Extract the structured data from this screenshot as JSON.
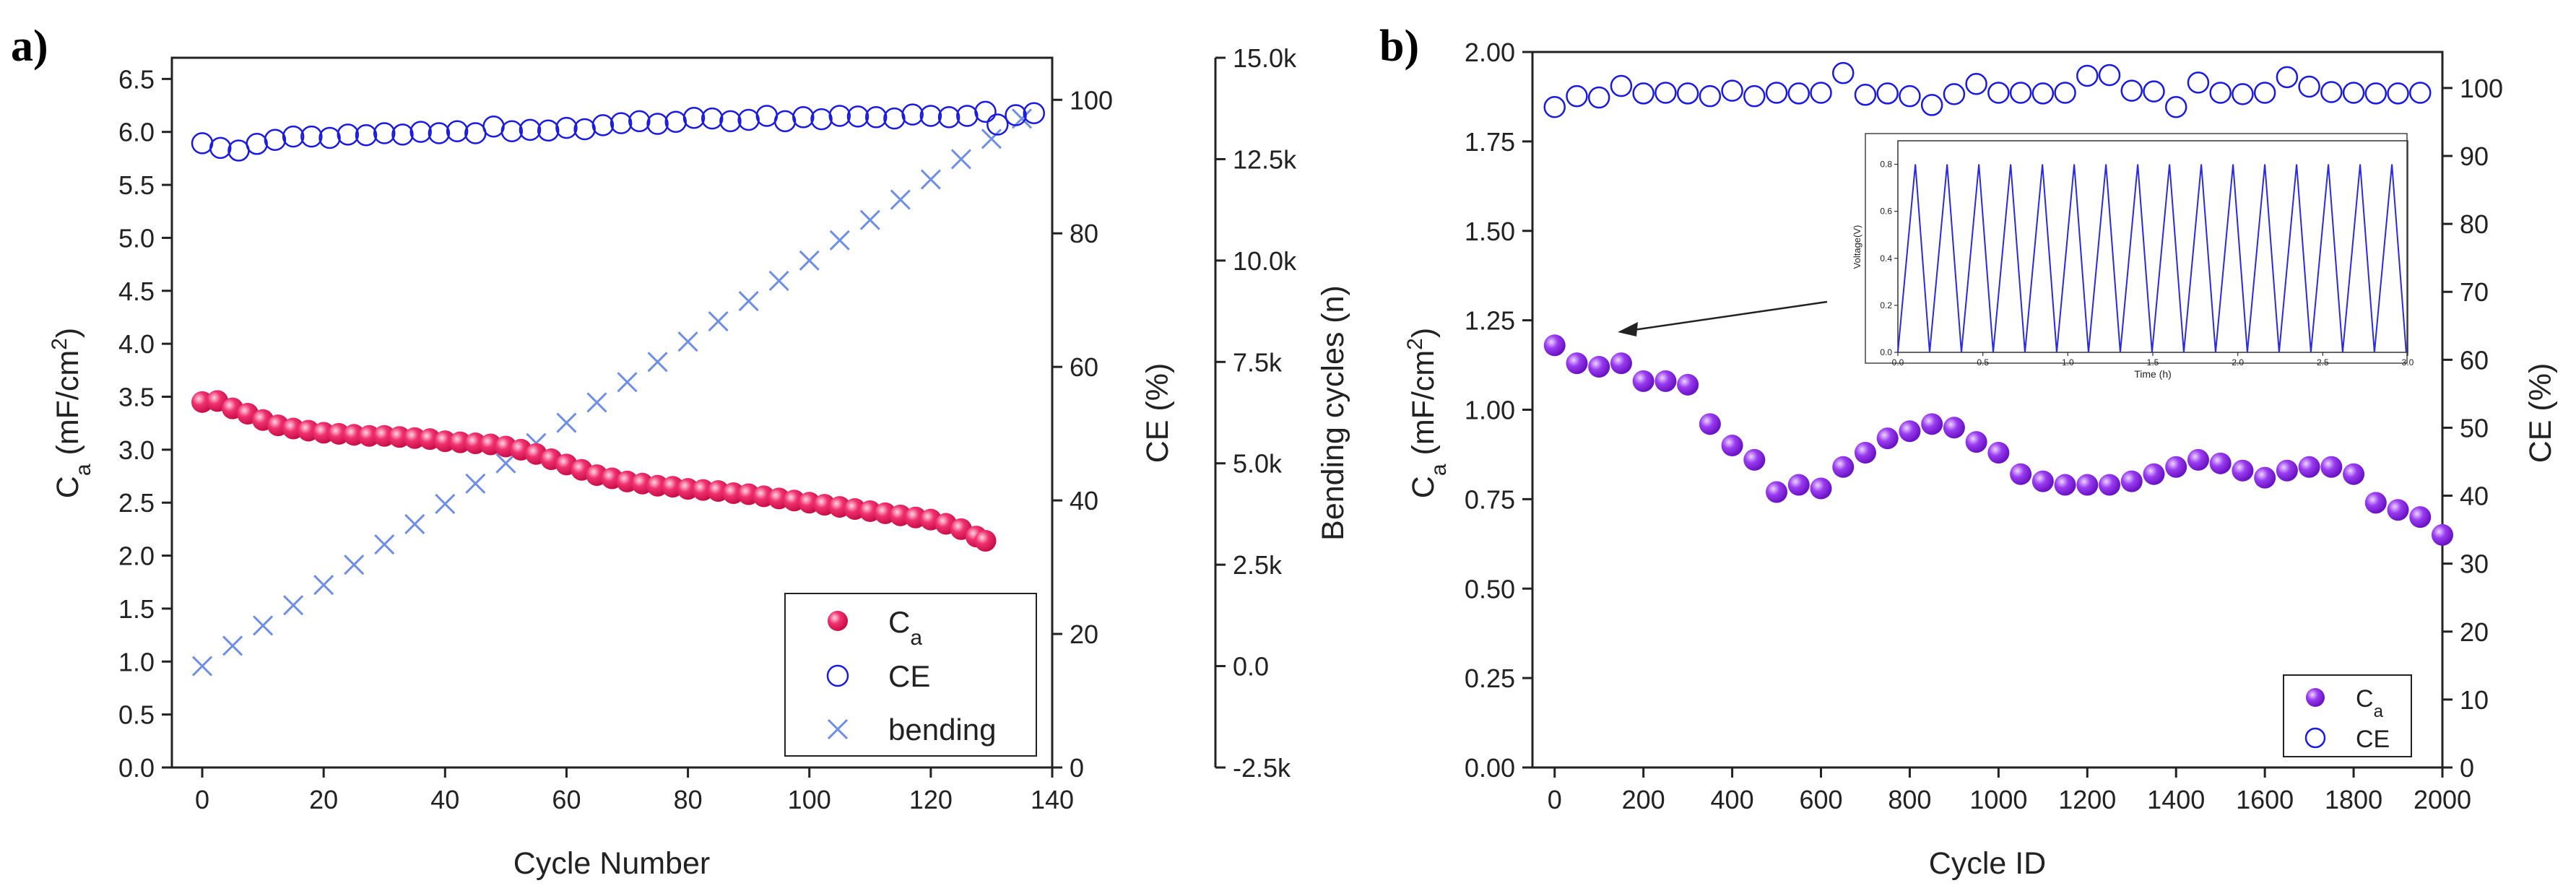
{
  "colors": {
    "ca_a": "#e8195a",
    "ce": "#1a1ae0",
    "bending": "#6f8fe6",
    "ca_b": "#8a2be2",
    "inset_line": "#2b2bdd",
    "axis": "#222222"
  },
  "chart_data": [
    {
      "panel": "a)",
      "type": "scatter",
      "xlabel": "Cycle Number",
      "ylabel_main": "C",
      "ylabel_sub": "a",
      "ylabel_units": " (mF/cm",
      "ylabel_sup": "2",
      "ylabel_close": ")",
      "y2label": "CE (%)",
      "y3label": "Bending cycles (n)",
      "xlim": [
        -5,
        140
      ],
      "ylim": [
        0,
        6.7
      ],
      "y2lim": [
        0,
        106.3
      ],
      "y3lim": [
        -2500,
        15000
      ],
      "xticks": [
        "0",
        "20",
        "40",
        "60",
        "80",
        "100",
        "120",
        "140"
      ],
      "yticks": [
        "0.0",
        "0.5",
        "1.0",
        "1.5",
        "2.0",
        "2.5",
        "3.0",
        "3.5",
        "4.0",
        "4.5",
        "5.0",
        "5.5",
        "6.0",
        "6.5"
      ],
      "y2ticks": [
        "0",
        "20",
        "40",
        "60",
        "80",
        "100"
      ],
      "y3ticks": [
        "-2.5k",
        "0.0",
        "2.5k",
        "5.0k",
        "7.5k",
        "10.0k",
        "12.5k",
        "15.0k"
      ],
      "legend": {
        "ca_main": "C",
        "ca_sub": "a",
        "ce": "CE",
        "bending": "bending"
      },
      "series": [
        {
          "name": "Ca",
          "axis": "left",
          "x": [
            0,
            2.5,
            5,
            7.5,
            10,
            12.5,
            15,
            17.5,
            20,
            22.5,
            25,
            27.5,
            30,
            32.5,
            35,
            37.5,
            40,
            42.5,
            45,
            47.5,
            50,
            52.5,
            55,
            57.5,
            60,
            62.5,
            65,
            67.5,
            70,
            72.5,
            75,
            77.5,
            80,
            82.5,
            85,
            87.5,
            90,
            92.5,
            95,
            97.5,
            100,
            102.5,
            105,
            107.5,
            110,
            112.5,
            115,
            117.5,
            120,
            122.5,
            125,
            127.5,
            129
          ],
          "values": [
            3.45,
            3.46,
            3.39,
            3.34,
            3.28,
            3.23,
            3.2,
            3.18,
            3.16,
            3.15,
            3.14,
            3.13,
            3.13,
            3.12,
            3.11,
            3.1,
            3.08,
            3.07,
            3.06,
            3.05,
            3.03,
            3.0,
            2.96,
            2.91,
            2.86,
            2.81,
            2.76,
            2.73,
            2.7,
            2.68,
            2.66,
            2.65,
            2.63,
            2.62,
            2.61,
            2.59,
            2.58,
            2.56,
            2.54,
            2.52,
            2.5,
            2.48,
            2.46,
            2.44,
            2.42,
            2.4,
            2.38,
            2.36,
            2.34,
            2.3,
            2.25,
            2.18,
            2.14
          ]
        },
        {
          "name": "CE",
          "axis": "right",
          "x": [
            0,
            3,
            6,
            9,
            12,
            15,
            18,
            21,
            24,
            27,
            30,
            33,
            36,
            39,
            42,
            45,
            48,
            51,
            54,
            57,
            60,
            63,
            66,
            69,
            72,
            75,
            78,
            81,
            84,
            87,
            90,
            93,
            96,
            99,
            102,
            105,
            108,
            111,
            114,
            117,
            120,
            123,
            126,
            129,
            131,
            134,
            137
          ],
          "values": [
            93.5,
            92.8,
            92.4,
            93.4,
            94.0,
            94.5,
            94.5,
            94.3,
            94.8,
            94.7,
            95.0,
            94.8,
            95.2,
            95.0,
            95.3,
            95.0,
            96.0,
            95.3,
            95.5,
            95.4,
            95.8,
            95.6,
            96.2,
            96.5,
            96.8,
            96.4,
            96.7,
            97.3,
            97.2,
            96.8,
            97.0,
            97.6,
            96.8,
            97.4,
            97.1,
            97.6,
            97.5,
            97.4,
            97.2,
            97.8,
            97.6,
            97.4,
            97.6,
            98.2,
            96.3,
            97.7,
            98.0
          ]
        },
        {
          "name": "bending",
          "axis": "right2",
          "x": [
            0,
            5,
            10,
            15,
            20,
            25,
            30,
            35,
            40,
            45,
            50,
            55,
            60,
            65,
            70,
            75,
            80,
            85,
            90,
            95,
            100,
            105,
            110,
            115,
            120,
            125,
            130,
            135
          ],
          "values": [
            0,
            500,
            1000,
            1500,
            2000,
            2500,
            3000,
            3500,
            4000,
            4500,
            5000,
            5500,
            6000,
            6500,
            7000,
            7500,
            8000,
            8500,
            9000,
            9500,
            10000,
            10500,
            11000,
            11500,
            12000,
            12500,
            13000,
            13500
          ]
        }
      ]
    },
    {
      "panel": "b)",
      "type": "scatter",
      "xlabel": "Cycle ID",
      "ylabel_main": "C",
      "ylabel_sub": "a",
      "ylabel_units": " (mF/cm",
      "ylabel_sup": "2",
      "ylabel_close": ")",
      "y2label": "CE (%)",
      "xlim": [
        -50,
        2000
      ],
      "ylim": [
        0,
        2.0
      ],
      "y2lim": [
        0,
        105.3
      ],
      "xticks": [
        "0",
        "200",
        "400",
        "600",
        "800",
        "1000",
        "1200",
        "1400",
        "1600",
        "1800",
        "2000"
      ],
      "yticks": [
        "0.00",
        "0.25",
        "0.50",
        "0.75",
        "1.00",
        "1.25",
        "1.50",
        "1.75",
        "2.00"
      ],
      "y2ticks": [
        "0",
        "10",
        "20",
        "30",
        "40",
        "50",
        "60",
        "70",
        "80",
        "90",
        "100"
      ],
      "legend": {
        "ca_main": "C",
        "ca_sub": "a",
        "ce": "CE"
      },
      "series": [
        {
          "name": "Ca",
          "axis": "left",
          "x": [
            0,
            50,
            100,
            150,
            200,
            250,
            300,
            350,
            400,
            450,
            500,
            550,
            600,
            650,
            700,
            750,
            800,
            850,
            900,
            950,
            1000,
            1050,
            1100,
            1150,
            1200,
            1250,
            1300,
            1350,
            1400,
            1450,
            1500,
            1550,
            1600,
            1650,
            1700,
            1750,
            1800,
            1850,
            1900,
            1950,
            2000
          ],
          "values": [
            1.18,
            1.13,
            1.12,
            1.13,
            1.08,
            1.08,
            1.07,
            0.96,
            0.9,
            0.86,
            0.77,
            0.79,
            0.78,
            0.84,
            0.88,
            0.92,
            0.94,
            0.96,
            0.95,
            0.91,
            0.88,
            0.82,
            0.8,
            0.79,
            0.79,
            0.79,
            0.8,
            0.82,
            0.84,
            0.86,
            0.85,
            0.83,
            0.81,
            0.83,
            0.84,
            0.84,
            0.82,
            0.74,
            0.72,
            0.7,
            0.65
          ]
        },
        {
          "name": "CE",
          "axis": "right",
          "x": [
            0,
            50,
            100,
            150,
            200,
            250,
            300,
            350,
            400,
            450,
            500,
            550,
            600,
            650,
            700,
            750,
            800,
            850,
            900,
            950,
            1000,
            1050,
            1100,
            1150,
            1200,
            1250,
            1300,
            1350,
            1400,
            1450,
            1500,
            1550,
            1600,
            1650,
            1700,
            1750,
            1800,
            1850,
            1900,
            1950
          ],
          "values": [
            97.2,
            98.8,
            98.6,
            100.3,
            99.2,
            99.3,
            99.2,
            98.8,
            99.6,
            98.8,
            99.3,
            99.2,
            99.3,
            102.2,
            99.0,
            99.2,
            98.8,
            97.5,
            99.1,
            100.6,
            99.3,
            99.3,
            99.2,
            99.3,
            101.8,
            101.9,
            99.6,
            99.5,
            97.2,
            100.8,
            99.3,
            99.1,
            99.3,
            101.6,
            100.2,
            99.4,
            99.3,
            99.2,
            99.2,
            99.3
          ]
        }
      ],
      "inset": {
        "type": "line",
        "xlabel": "Time (h)",
        "ylabel": "Voltage(V)",
        "xlim": [
          0,
          3.0
        ],
        "ylim": [
          0,
          0.9
        ],
        "xticks": [
          "0.0",
          "0.5",
          "1.0",
          "1.5",
          "2.0",
          "2.5",
          "3.0"
        ],
        "yticks": [
          "0.0",
          "0.2",
          "0.4",
          "0.6",
          "0.8"
        ],
        "vmin": 0.0,
        "vmax": 0.8,
        "cycles": 16,
        "charge_fraction": 0.55
      }
    }
  ]
}
